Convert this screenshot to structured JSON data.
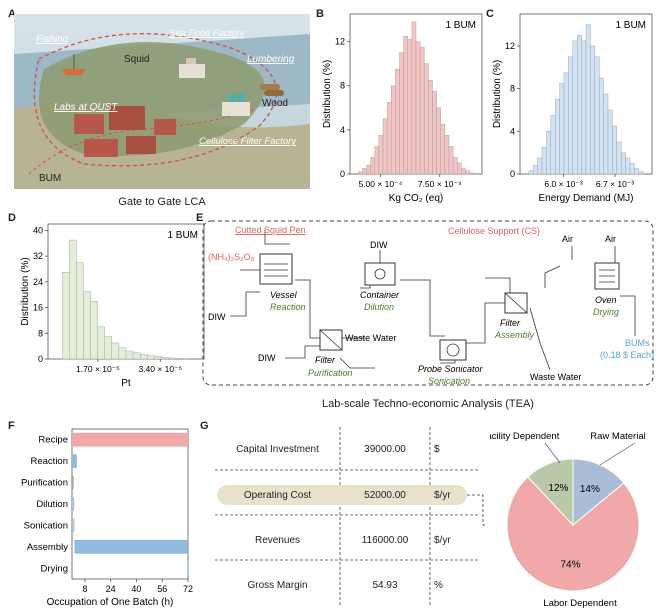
{
  "panels": {
    "A": {
      "letter": "A",
      "labels": [
        "Fishing",
        "Sea Food Factory",
        "Squid",
        "Lumbering",
        "Labs at QUST",
        "Wood",
        "Cellulose Filter Factory",
        "BUM"
      ],
      "caption": "Gate to Gate LCA"
    },
    "B": {
      "letter": "B"
    },
    "C": {
      "letter": "C"
    },
    "D": {
      "letter": "D"
    },
    "E": {
      "letter": "E",
      "caption": "Lab-scale Techno-economic Analysis (TEA)",
      "inputs": {
        "squid_pen": "Cutted Squid Pen",
        "persulfate": "(NH₄)₂S₂O₈",
        "diw1": "DIW",
        "diw2": "DIW",
        "diw3": "DIW",
        "cs": "Cellulose Support (CS)",
        "air1": "Air",
        "air2": "Air"
      },
      "units": [
        {
          "name": "Vessel",
          "step": "Reaction"
        },
        {
          "name": "Filter",
          "step": "Purification"
        },
        {
          "name": "Container",
          "step": "Dilution"
        },
        {
          "name": "Probe Sonicator",
          "step": "Sonication"
        },
        {
          "name": "Filter",
          "step": "Assembly"
        },
        {
          "name": "Oven",
          "step": "Drying"
        }
      ],
      "outputs": {
        "waste1": "Waste Water",
        "waste2": "Waste Water",
        "bums": "BUMs",
        "bums_price": "(0.18 $ Each)"
      }
    },
    "F": {
      "letter": "F"
    },
    "G": {
      "letter": "G",
      "table": [
        {
          "label": "Capital Investment",
          "value": "39000.00",
          "unit": "$"
        },
        {
          "label": "Operating Cost",
          "value": "52000.00",
          "unit": "$/yr"
        },
        {
          "label": "Revenues",
          "value": "116000.00",
          "unit": "$/yr"
        },
        {
          "label": "Gross Margin",
          "value": "54.93",
          "unit": "%"
        }
      ]
    }
  },
  "chart_data": [
    {
      "id": "B",
      "type": "bar",
      "annotation": "1 BUM",
      "xlabel": "Kg CO₂ (eq)",
      "ylabel": "Distribution (%)",
      "xticks": [
        "5.00 × 10⁻⁴",
        "7.50 × 10⁻⁴"
      ],
      "yticks": [
        "0",
        "4",
        "8",
        "12"
      ],
      "ylim": [
        0,
        14.5
      ],
      "values": [
        0.2,
        0.5,
        0.8,
        1.5,
        2.5,
        3.5,
        5,
        6.5,
        8,
        9.5,
        11,
        12.5,
        12.2,
        13.8,
        12,
        11.5,
        10,
        8.5,
        7.5,
        6,
        4.5,
        3.5,
        2.5,
        1.5,
        1,
        0.5,
        0.3,
        0.1
      ],
      "color": "#f4c4c4"
    },
    {
      "id": "C",
      "type": "bar",
      "annotation": "1 BUM",
      "xlabel": "Energy Demand (MJ)",
      "ylabel": "Distribution (%)",
      "xticks": [
        "6.0 × 10⁻³",
        "6.7 × 10⁻³"
      ],
      "yticks": [
        "0",
        "4",
        "8",
        "12"
      ],
      "ylim": [
        0,
        15
      ],
      "values": [
        0.3,
        0.8,
        1.5,
        2.5,
        4,
        5.5,
        7,
        8.5,
        9.5,
        11,
        12.5,
        13,
        12.5,
        14,
        12,
        11,
        9,
        7.5,
        6,
        4.5,
        3,
        2,
        1.5,
        1,
        0.5,
        0.2
      ],
      "color": "#cfe3f5"
    },
    {
      "id": "D",
      "type": "bar",
      "annotation": "1 BUM",
      "xlabel": "Pt",
      "ylabel": "Distribution (%)",
      "xticks": [
        "1.70 × 10⁻⁵",
        "3.40 × 10⁻⁵"
      ],
      "yticks": [
        "0",
        "8",
        "16",
        "24",
        "32",
        "40"
      ],
      "ylim": [
        0,
        42
      ],
      "values": [
        27,
        37,
        30,
        21,
        18,
        10,
        7,
        5,
        3.5,
        2.5,
        2,
        1.5,
        1,
        0.8,
        0.5,
        0.3,
        0.2,
        0.1
      ],
      "color": "#e3eed8"
    },
    {
      "id": "F",
      "type": "bar",
      "orientation": "horizontal",
      "xlabel": "Occupation of One Batch (h)",
      "categories": [
        "Recipe",
        "Reaction",
        "Purification",
        "Dilution",
        "Sonication",
        "Assembly",
        "Drying"
      ],
      "starts": [
        0,
        0,
        0.5,
        0.7,
        0.8,
        1.5,
        71.5
      ],
      "durations": [
        72,
        3,
        0.3,
        0.2,
        0.7,
        70,
        0.2
      ],
      "colors": [
        "#f0a8a8",
        "#8fbbe0",
        "#8fbbe0",
        "#8fbbe0",
        "#8fbbe0",
        "#8fbbe0",
        "#8fbbe0"
      ],
      "xticks": [
        "8",
        "24",
        "40",
        "56",
        "72"
      ],
      "xlim": [
        0,
        72
      ]
    },
    {
      "id": "G",
      "type": "pie",
      "slices": [
        {
          "name": "Raw Material",
          "value": 14,
          "label": "14%",
          "color": "#a9bdd6"
        },
        {
          "name": "Labor Dependent",
          "value": 74,
          "label": "74%",
          "color": "#f0a8a8"
        },
        {
          "name": "Facility Dependent",
          "value": 12,
          "label": "12%",
          "color": "#b9c9a8"
        }
      ]
    }
  ]
}
